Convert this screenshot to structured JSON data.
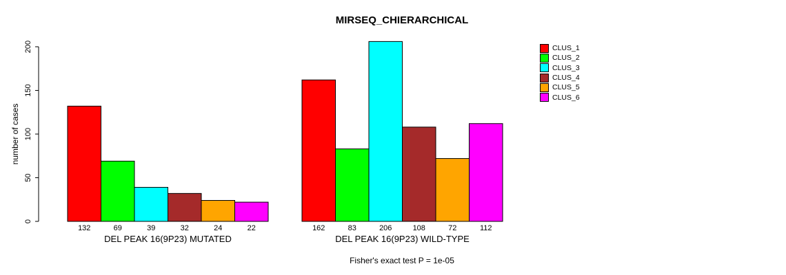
{
  "chart_data": {
    "type": "bar",
    "title": "MIRSEQ_CHIERARCHICAL",
    "ylabel": "number of cases",
    "xlabel": "",
    "ylim": [
      0,
      200
    ],
    "yticks": [
      0,
      50,
      100,
      150,
      200
    ],
    "grid": false,
    "legend_position": "right",
    "legend": [
      {
        "label": "CLUS_1",
        "color": "#ff0000"
      },
      {
        "label": "CLUS_2",
        "color": "#00ff00"
      },
      {
        "label": "CLUS_3",
        "color": "#00ffff"
      },
      {
        "label": "CLUS_4",
        "color": "#a52a2a"
      },
      {
        "label": "CLUS_5",
        "color": "#ffa500"
      },
      {
        "label": "CLUS_6",
        "color": "#ff00ff"
      }
    ],
    "groups": [
      {
        "label": "DEL PEAK 16(9P23) MUTATED",
        "values": [
          132,
          69,
          39,
          32,
          24,
          22
        ]
      },
      {
        "label": "DEL PEAK 16(9P23) WILD-TYPE",
        "values": [
          162,
          83,
          206,
          108,
          72,
          112
        ]
      }
    ],
    "annotation": "Fisher's exact test P = 1e-05",
    "colors": {
      "axis": "#000000",
      "background": "#ffffff",
      "bar_border": "#000000"
    }
  }
}
